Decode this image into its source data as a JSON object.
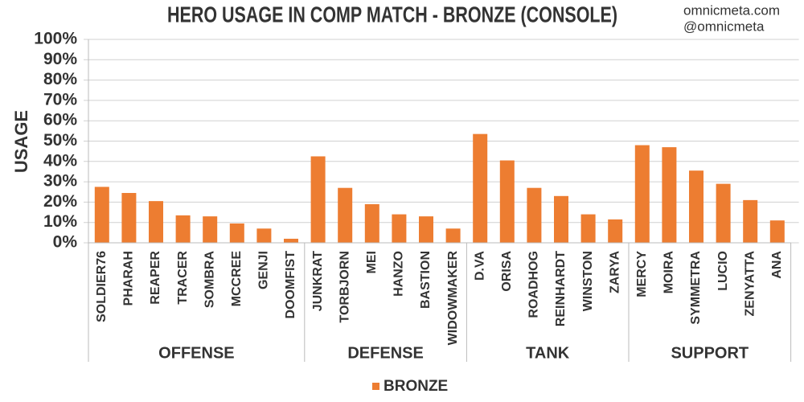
{
  "chart_data": {
    "type": "bar",
    "title": "HERO USAGE IN COMP MATCH - BRONZE (CONSOLE)",
    "watermark": [
      "omnicmeta.com",
      "@omnicmeta"
    ],
    "y_label": "USAGE",
    "groups": [
      {
        "name": "OFFENSE",
        "categories": [
          "SOLDIER76",
          "PHARAH",
          "REAPER",
          "TRACER",
          "SOMBRA",
          "MCCREE",
          "GENJI",
          "DOOMFIST"
        ]
      },
      {
        "name": "DEFENSE",
        "categories": [
          "JUNKRAT",
          "TORBJORN",
          "MEI",
          "HANZO",
          "BASTION",
          "WIDOWMAKER"
        ]
      },
      {
        "name": "TANK",
        "categories": [
          "D.VA",
          "ORISA",
          "ROADHOG",
          "REINHARDT",
          "WINSTON",
          "ZARYA"
        ]
      },
      {
        "name": "SUPPORT",
        "categories": [
          "MERCY",
          "MOIRA",
          "SYMMETRA",
          "LUCIO",
          "ZENYATTA",
          "ANA"
        ]
      }
    ],
    "series": [
      {
        "name": "BRONZE",
        "color": "#ed7d31",
        "values": [
          27.5,
          24.5,
          20.5,
          13.5,
          13,
          9.5,
          7,
          2,
          42.5,
          27,
          19,
          14,
          13,
          7,
          53.5,
          40.5,
          27,
          23,
          14,
          11.5,
          48,
          47,
          35.5,
          29,
          21,
          11
        ]
      }
    ],
    "ylim": [
      0,
      100
    ],
    "yticks": [
      {
        "value": 0,
        "label": "0%"
      },
      {
        "value": 10,
        "label": "10%"
      },
      {
        "value": 20,
        "label": "20%"
      },
      {
        "value": 30,
        "label": "30%"
      },
      {
        "value": 40,
        "label": "40%"
      },
      {
        "value": 50,
        "label": "50%"
      },
      {
        "value": 60,
        "label": "60%"
      },
      {
        "value": 70,
        "label": "70%"
      },
      {
        "value": 80,
        "label": "80%"
      },
      {
        "value": 90,
        "label": "90%"
      },
      {
        "value": 100,
        "label": "100%"
      }
    ],
    "grid": true
  }
}
